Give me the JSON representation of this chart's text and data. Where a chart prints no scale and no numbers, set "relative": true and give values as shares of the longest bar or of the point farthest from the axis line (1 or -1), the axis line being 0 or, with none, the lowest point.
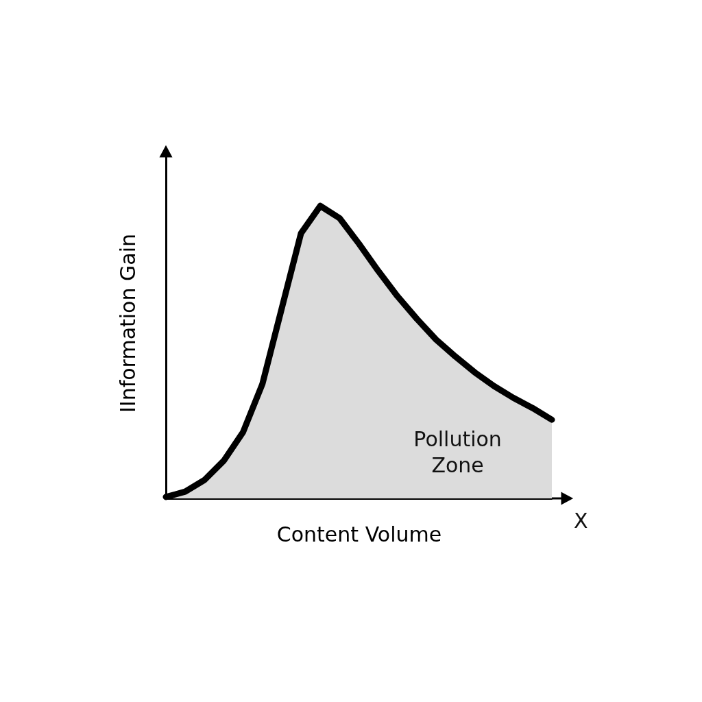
{
  "chart_data": {
    "type": "area",
    "relative": true,
    "xlabel": "Content Volume",
    "ylabel": "IInformation Gain",
    "categories": [
      null,
      null,
      null,
      null,
      null,
      null,
      null,
      null,
      null,
      null,
      null,
      null,
      null,
      null,
      null,
      null,
      null,
      null,
      null,
      null,
      null
    ],
    "series": [
      {
        "color": "#dcdcdc",
        "values": [
          0.005,
          0.023,
          0.063,
          0.129,
          0.227,
          0.391,
          0.649,
          0.906,
          1,
          0.958,
          0.871,
          0.778,
          0.691,
          0.614,
          0.543,
          0.485,
          0.431,
          0.384,
          0.344,
          0.309,
          0.269
        ]
      }
    ],
    "annotations": [
      "Pollution Zone",
      "X"
    ]
  }
}
